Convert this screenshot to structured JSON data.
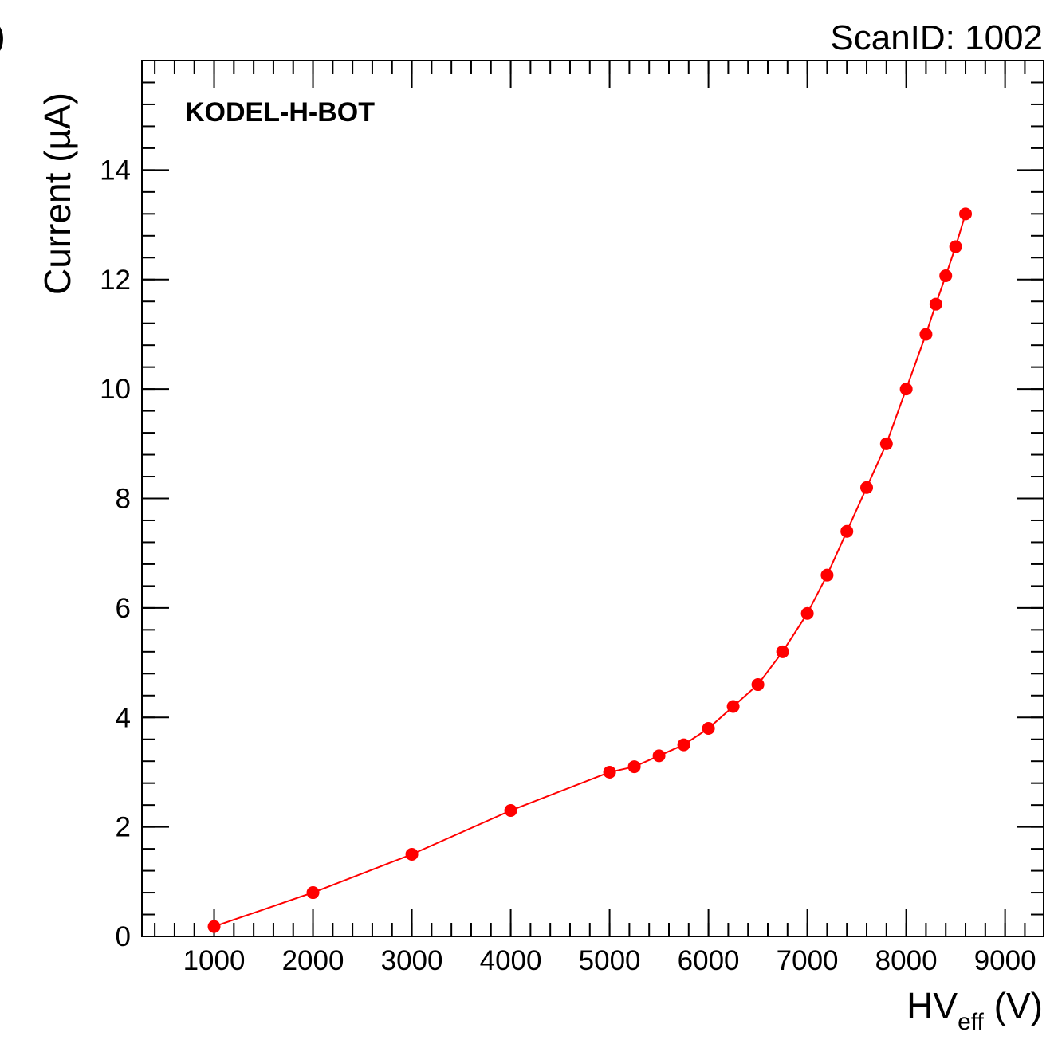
{
  "header": {
    "scan_label": "ScanID: 1002",
    "edge_glyph": ")"
  },
  "chart_data": {
    "type": "line",
    "annotation": "KODEL-H-BOT",
    "xlabel": "HV",
    "xlabel_sub": "eff",
    "xlabel_unit": " (V)",
    "ylabel": "Current (µA)",
    "xlim": [
      270,
      9390
    ],
    "ylim": [
      0,
      16
    ],
    "x_ticks": [
      1000,
      2000,
      3000,
      4000,
      5000,
      6000,
      7000,
      8000,
      9000
    ],
    "y_ticks": [
      0,
      2,
      4,
      6,
      8,
      10,
      12,
      14
    ],
    "grid": false,
    "series": [
      {
        "color": "#ff0000",
        "points": [
          [
            1000,
            0.18
          ],
          [
            2000,
            0.8
          ],
          [
            3000,
            1.5
          ],
          [
            4000,
            2.3
          ],
          [
            5000,
            3.0
          ],
          [
            5250,
            3.1
          ],
          [
            5500,
            3.3
          ],
          [
            5750,
            3.5
          ],
          [
            6000,
            3.8
          ],
          [
            6250,
            4.2
          ],
          [
            6500,
            4.6
          ],
          [
            6750,
            5.2
          ],
          [
            7000,
            5.9
          ],
          [
            7200,
            6.6
          ],
          [
            7400,
            7.4
          ],
          [
            7600,
            8.2
          ],
          [
            7800,
            9.0
          ],
          [
            8000,
            10.0
          ],
          [
            8200,
            11.0
          ],
          [
            8300,
            11.55
          ],
          [
            8400,
            12.07
          ],
          [
            8500,
            12.6
          ],
          [
            8600,
            13.2
          ]
        ]
      }
    ]
  }
}
